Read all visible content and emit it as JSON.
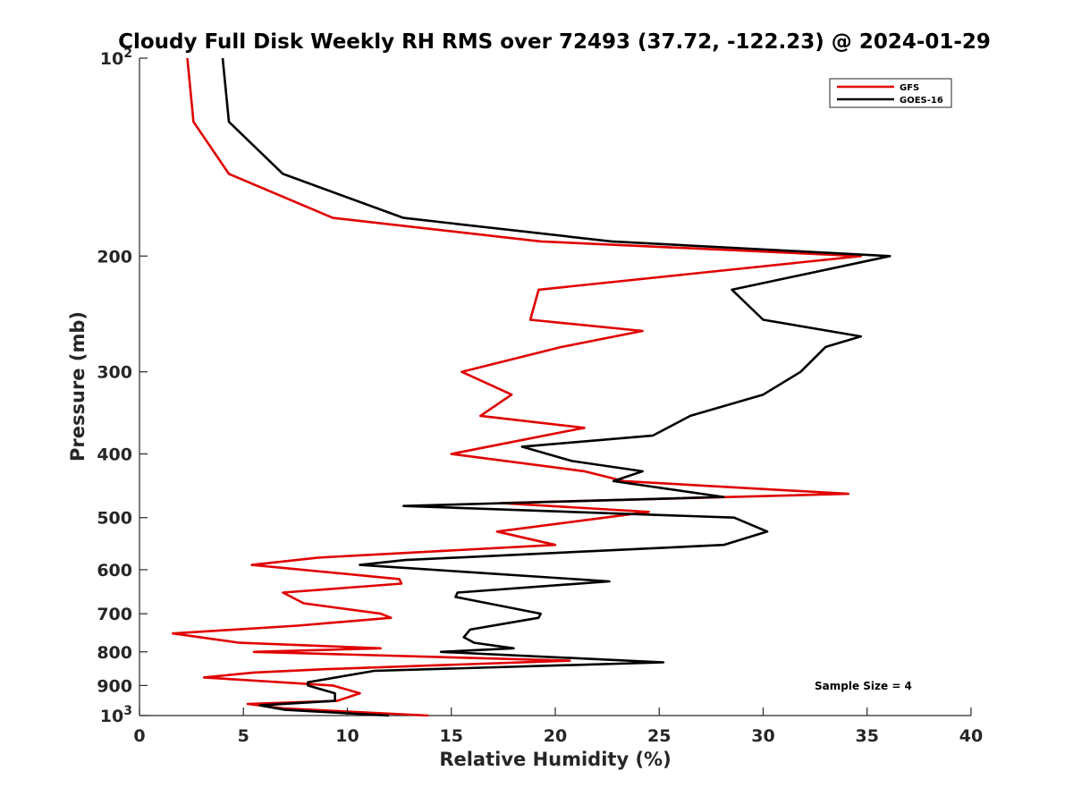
{
  "chart_data": {
    "type": "line",
    "title": "Cloudy Full Disk Weekly RH RMS over 72493 (37.72, -122.23) @ 2024-01-29",
    "xlabel": "Relative Humidity (%)",
    "ylabel": "Pressure (mb)",
    "xlim": [
      0,
      40
    ],
    "ylim": [
      100,
      1000
    ],
    "yscale": "log",
    "y_reversed": true,
    "x_ticks": [
      0,
      5,
      10,
      15,
      20,
      25,
      30,
      35,
      40
    ],
    "x_tick_labels": [
      "0",
      "5",
      "10",
      "15",
      "20",
      "25",
      "30",
      "35",
      "40"
    ],
    "y_ticks": [
      200,
      300,
      400,
      500,
      600,
      700,
      800,
      900
    ],
    "y_tick_labels": [
      "200",
      "300",
      "400",
      "500",
      "600",
      "700",
      "800",
      "900"
    ],
    "y_end_labels": [
      {
        "value": 100,
        "base": "10",
        "exp": "2"
      },
      {
        "value": 1000,
        "base": "10",
        "exp": "3"
      }
    ],
    "grid": false,
    "legend_position": "top-right",
    "annotation": "Sample Size = 4",
    "series": [
      {
        "name": "GFS",
        "color": "#e00000",
        "points": [
          [
            2.3,
            100
          ],
          [
            2.6,
            125
          ],
          [
            4.3,
            150
          ],
          [
            9.3,
            175
          ],
          [
            19.3,
            190
          ],
          [
            34.7,
            200
          ],
          [
            19.2,
            225
          ],
          [
            18.8,
            250
          ],
          [
            24.2,
            260
          ],
          [
            20.3,
            275
          ],
          [
            15.5,
            300
          ],
          [
            17.9,
            325
          ],
          [
            16.4,
            350
          ],
          [
            21.4,
            365
          ],
          [
            15.0,
            400
          ],
          [
            21.4,
            425
          ],
          [
            23.3,
            440
          ],
          [
            34.1,
            460
          ],
          [
            17.4,
            475
          ],
          [
            24.5,
            490
          ],
          [
            17.2,
            525
          ],
          [
            20.0,
            550
          ],
          [
            8.6,
            575
          ],
          [
            5.4,
            590
          ],
          [
            12.5,
            620
          ],
          [
            12.6,
            630
          ],
          [
            6.9,
            650
          ],
          [
            7.9,
            675
          ],
          [
            11.6,
            700
          ],
          [
            12.1,
            710
          ],
          [
            7.6,
            730
          ],
          [
            1.6,
            750
          ],
          [
            4.8,
            775
          ],
          [
            11.6,
            790
          ],
          [
            5.5,
            800
          ],
          [
            20.7,
            825
          ],
          [
            9.0,
            850
          ],
          [
            5.5,
            860
          ],
          [
            3.1,
            875
          ],
          [
            9.3,
            900
          ],
          [
            10.6,
            925
          ],
          [
            9.5,
            950
          ],
          [
            5.2,
            960
          ],
          [
            6.9,
            975
          ],
          [
            13.9,
            1000
          ]
        ]
      },
      {
        "name": "GOES-16",
        "color": "#000000",
        "points": [
          [
            4.0,
            100
          ],
          [
            4.3,
            125
          ],
          [
            6.9,
            150
          ],
          [
            12.7,
            175
          ],
          [
            22.7,
            190
          ],
          [
            36.1,
            200
          ],
          [
            28.5,
            225
          ],
          [
            30.0,
            250
          ],
          [
            34.7,
            265
          ],
          [
            33.0,
            275
          ],
          [
            31.8,
            300
          ],
          [
            30.0,
            325
          ],
          [
            26.5,
            350
          ],
          [
            24.7,
            375
          ],
          [
            18.4,
            390
          ],
          [
            20.8,
            410
          ],
          [
            24.2,
            425
          ],
          [
            22.8,
            440
          ],
          [
            28.1,
            465
          ],
          [
            12.7,
            480
          ],
          [
            28.6,
            500
          ],
          [
            30.2,
            525
          ],
          [
            28.1,
            550
          ],
          [
            12.8,
            580
          ],
          [
            10.6,
            590
          ],
          [
            22.6,
            625
          ],
          [
            15.3,
            650
          ],
          [
            15.2,
            660
          ],
          [
            19.3,
            700
          ],
          [
            19.2,
            710
          ],
          [
            15.9,
            740
          ],
          [
            15.6,
            760
          ],
          [
            16.1,
            775
          ],
          [
            18.0,
            790
          ],
          [
            14.5,
            800
          ],
          [
            25.2,
            830
          ],
          [
            11.3,
            855
          ],
          [
            8.1,
            890
          ],
          [
            8.1,
            900
          ],
          [
            9.4,
            925
          ],
          [
            9.4,
            950
          ],
          [
            5.8,
            965
          ],
          [
            7.0,
            980
          ],
          [
            12.0,
            1000
          ]
        ]
      }
    ]
  }
}
